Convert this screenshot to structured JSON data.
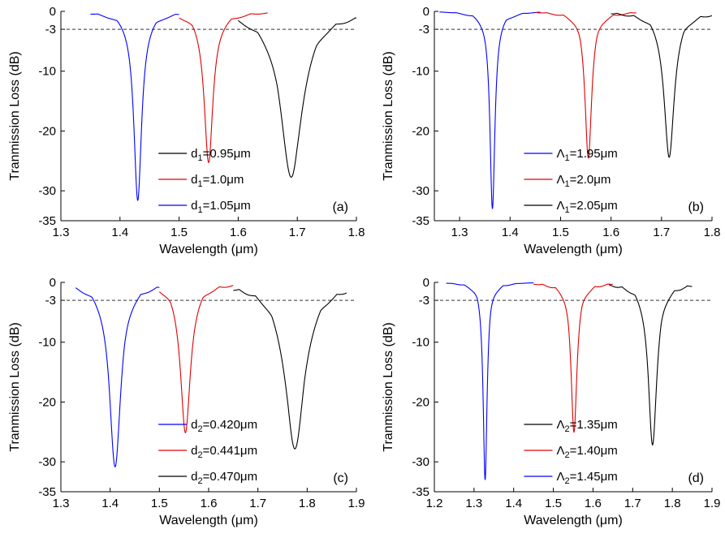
{
  "chart_data": [
    {
      "type": "line",
      "panel_tag": "(a)",
      "xlabel": "Wavelength (μm)",
      "ylabel": "Tranmission Loss (dB)",
      "xlim": [
        1.3,
        1.8
      ],
      "ylim": [
        -35,
        0
      ],
      "xticks": [
        "1.3",
        "1.4",
        "1.5",
        "1.6",
        "1.7",
        "1.8"
      ],
      "yticks": [
        "0",
        "-3",
        "-10",
        "-20",
        "-30",
        "-35"
      ],
      "threshold_line": -3,
      "legend_position": "bottom-center",
      "series": [
        {
          "name": "d1=0.95μm",
          "name_parts": [
            "d",
            "1",
            "=0.95μm"
          ],
          "color": "#000000",
          "range": [
            1.6,
            1.8
          ],
          "dip_center": 1.69,
          "dip_depth": -27.3,
          "dip_width": 0.022
        },
        {
          "name": "d1=1.0μm",
          "name_parts": [
            "d",
            "1",
            "=1.0μm"
          ],
          "color": "#e00000",
          "range": [
            1.5,
            1.65
          ],
          "dip_center": 1.55,
          "dip_depth": -25.0,
          "dip_width": 0.009
        },
        {
          "name": "d1=1.05μm",
          "name_parts": [
            "d",
            "1",
            "=1.05μm"
          ],
          "color": "#0000ff",
          "range": [
            1.35,
            1.5
          ],
          "dip_center": 1.43,
          "dip_depth": -31.5,
          "dip_width": 0.008
        }
      ]
    },
    {
      "type": "line",
      "panel_tag": "(b)",
      "xlabel": "Wavelength (μm)",
      "ylabel": "Tranmission Loss (dB)",
      "xlim": [
        1.25,
        1.8
      ],
      "ylim": [
        -35,
        0
      ],
      "xticks": [
        "1.3",
        "1.4",
        "1.5",
        "1.6",
        "1.7",
        "1.8"
      ],
      "yticks": [
        "0",
        "-3",
        "-10",
        "-20",
        "-30",
        "-35"
      ],
      "threshold_line": -3,
      "legend_position": "bottom-center",
      "series": [
        {
          "name": "Λ1=1.95μm",
          "name_parts": [
            "Λ",
            "1",
            "=1.95μm"
          ],
          "color": "#0000ff",
          "range": [
            1.26,
            1.46
          ],
          "dip_center": 1.365,
          "dip_depth": -32.7,
          "dip_width": 0.006
        },
        {
          "name": "Λ1=2.0μm",
          "name_parts": [
            "Λ",
            "1",
            "=2.0μm"
          ],
          "color": "#e00000",
          "range": [
            1.45,
            1.65
          ],
          "dip_center": 1.555,
          "dip_depth": -24.0,
          "dip_width": 0.008
        },
        {
          "name": "Λ1=2.05μm",
          "name_parts": [
            "Λ",
            "1",
            "=2.05μm"
          ],
          "color": "#000000",
          "range": [
            1.6,
            1.8
          ],
          "dip_center": 1.715,
          "dip_depth": -24.2,
          "dip_width": 0.012
        }
      ]
    },
    {
      "type": "line",
      "panel_tag": "(c)",
      "xlabel": "Wavelength (μm)",
      "ylabel": "Tranmission Loss (dB)",
      "xlim": [
        1.3,
        1.9
      ],
      "ylim": [
        -35,
        0
      ],
      "xticks": [
        "1.3",
        "1.4",
        "1.5",
        "1.6",
        "1.7",
        "1.8",
        "1.9"
      ],
      "yticks": [
        "0",
        "-3",
        "-10",
        "-20",
        "-30",
        "-35"
      ],
      "threshold_line": -3,
      "legend_position": "bottom-center",
      "series": [
        {
          "name": "d2=0.420μm",
          "name_parts": [
            "d",
            "2",
            "=0.420μm"
          ],
          "color": "#0000ff",
          "range": [
            1.33,
            1.5
          ],
          "dip_center": 1.41,
          "dip_depth": -30.3,
          "dip_width": 0.014
        },
        {
          "name": "d2=0.441μm",
          "name_parts": [
            "d",
            "2",
            "=0.441μm"
          ],
          "color": "#e00000",
          "range": [
            1.5,
            1.65
          ],
          "dip_center": 1.553,
          "dip_depth": -25.0,
          "dip_width": 0.012
        },
        {
          "name": "d2=0.470μm",
          "name_parts": [
            "d",
            "2",
            "=0.470μm"
          ],
          "color": "#000000",
          "range": [
            1.65,
            1.88
          ],
          "dip_center": 1.775,
          "dip_depth": -27.3,
          "dip_width": 0.024
        }
      ]
    },
    {
      "type": "line",
      "panel_tag": "(d)",
      "xlabel": "Wavelength (μm)",
      "ylabel": "Tranmission Loss (dB)",
      "xlim": [
        1.2,
        1.9
      ],
      "ylim": [
        -35,
        0
      ],
      "xticks": [
        "1.2",
        "1.3",
        "1.4",
        "1.5",
        "1.6",
        "1.7",
        "1.8",
        "1.9"
      ],
      "yticks": [
        "0",
        "-3",
        "-10",
        "-20",
        "-30",
        "-35"
      ],
      "threshold_line": -3,
      "legend_position": "bottom-center",
      "series": [
        {
          "name": "Λ2=1.35μm",
          "name_parts": [
            "Λ",
            "2",
            "=1.35μm"
          ],
          "color": "#000000",
          "range": [
            1.64,
            1.85
          ],
          "dip_center": 1.75,
          "dip_depth": -26.7,
          "dip_width": 0.013
        },
        {
          "name": "Λ2=1.40μm",
          "name_parts": [
            "Λ",
            "2",
            "=1.40μm"
          ],
          "color": "#e00000",
          "range": [
            1.45,
            1.65
          ],
          "dip_center": 1.552,
          "dip_depth": -24.5,
          "dip_width": 0.009
        },
        {
          "name": "Λ2=1.45μm",
          "name_parts": [
            "Λ",
            "2",
            "=1.45μm"
          ],
          "color": "#0000ff",
          "range": [
            1.23,
            1.45
          ],
          "dip_center": 1.328,
          "dip_depth": -32.5,
          "dip_width": 0.006
        }
      ]
    }
  ]
}
